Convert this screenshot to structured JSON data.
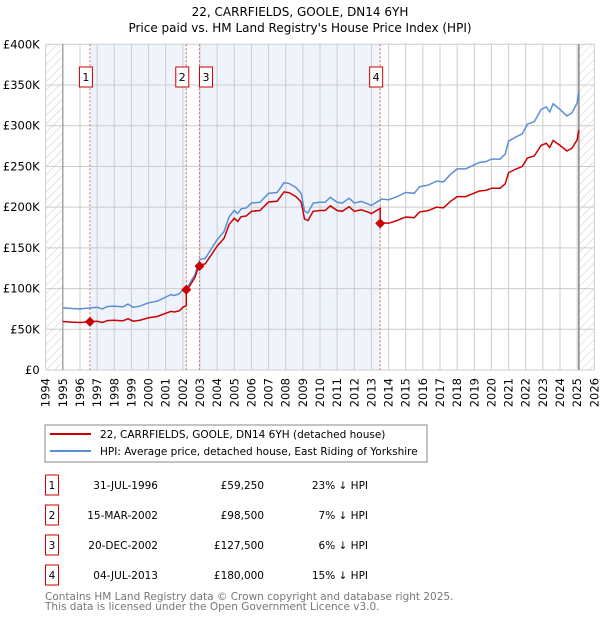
{
  "chart_data": {
    "type": "line",
    "title": "22, CARRFIELDS, GOOLE, DN14 6YH",
    "subtitle": "Price paid vs. HM Land Registry's House Price Index (HPI)",
    "xlim": [
      1994,
      2026
    ],
    "ylim": [
      0,
      400000
    ],
    "x_ticks": [
      "1994",
      "1995",
      "1996",
      "1997",
      "1998",
      "1999",
      "2000",
      "2001",
      "2002",
      "2003",
      "2004",
      "2005",
      "2006",
      "2007",
      "2008",
      "2009",
      "2010",
      "2011",
      "2012",
      "2013",
      "2014",
      "2015",
      "2016",
      "2017",
      "2018",
      "2019",
      "2020",
      "2021",
      "2022",
      "2023",
      "2024",
      "2025",
      "2026"
    ],
    "y_ticks": [
      {
        "value": 0,
        "label": "£0"
      },
      {
        "value": 50000,
        "label": "£50K"
      },
      {
        "value": 100000,
        "label": "£100K"
      },
      {
        "value": 150000,
        "label": "£150K"
      },
      {
        "value": 200000,
        "label": "£200K"
      },
      {
        "value": 250000,
        "label": "£250K"
      },
      {
        "value": 300000,
        "label": "£300K"
      },
      {
        "value": 350000,
        "label": "£350K"
      },
      {
        "value": 400000,
        "label": "£400K"
      }
    ],
    "grid": true,
    "data_start": 1995.0,
    "data_end": 2025.1,
    "colors": {
      "property": "#cc0000",
      "hpi": "#5b8fd4",
      "shade": "#eef3fc",
      "marker_line": "#e06666"
    },
    "hpi_series": {
      "name": "HPI: Average price, detached house, East Riding of Yorkshire",
      "points": [
        [
          1995.0,
          76500
        ],
        [
          1995.5,
          75500
        ],
        [
          1996.0,
          75000
        ],
        [
          1996.5,
          76000
        ],
        [
          1997.0,
          77000
        ],
        [
          1997.3,
          75000
        ],
        [
          1997.6,
          78000
        ],
        [
          1998.0,
          78500
        ],
        [
          1998.5,
          77500
        ],
        [
          1998.8,
          81000
        ],
        [
          1999.1,
          77000
        ],
        [
          1999.5,
          78500
        ],
        [
          2000.0,
          82500
        ],
        [
          2000.5,
          84500
        ],
        [
          2001.0,
          89500
        ],
        [
          2001.3,
          92500
        ],
        [
          2001.5,
          91500
        ],
        [
          2001.8,
          93500
        ],
        [
          2002.0,
          99000
        ],
        [
          2002.3,
          103000
        ],
        [
          2002.7,
          117000
        ],
        [
          2003.0,
          136000
        ],
        [
          2003.3,
          137000
        ],
        [
          2003.7,
          150000
        ],
        [
          2004.0,
          160000
        ],
        [
          2004.4,
          170000
        ],
        [
          2004.7,
          188000
        ],
        [
          2005.0,
          196000
        ],
        [
          2005.2,
          192000
        ],
        [
          2005.4,
          198000
        ],
        [
          2005.7,
          199000
        ],
        [
          2006.0,
          205000
        ],
        [
          2006.5,
          206000
        ],
        [
          2007.0,
          217000
        ],
        [
          2007.5,
          218000
        ],
        [
          2007.9,
          230000
        ],
        [
          2008.2,
          229000
        ],
        [
          2008.6,
          224000
        ],
        [
          2008.9,
          217000
        ],
        [
          2009.1,
          195000
        ],
        [
          2009.3,
          193000
        ],
        [
          2009.6,
          205000
        ],
        [
          2010.0,
          206000
        ],
        [
          2010.3,
          206000
        ],
        [
          2010.6,
          212000
        ],
        [
          2011.0,
          206000
        ],
        [
          2011.3,
          205000
        ],
        [
          2011.7,
          211000
        ],
        [
          2012.0,
          205000
        ],
        [
          2012.4,
          207000
        ],
        [
          2012.8,
          204000
        ],
        [
          2013.0,
          202000
        ],
        [
          2013.3,
          206000
        ],
        [
          2013.6,
          210000
        ],
        [
          2014.0,
          209000
        ],
        [
          2014.5,
          213000
        ],
        [
          2015.0,
          218000
        ],
        [
          2015.5,
          217000
        ],
        [
          2015.8,
          225000
        ],
        [
          2016.3,
          227000
        ],
        [
          2016.8,
          232000
        ],
        [
          2017.2,
          231000
        ],
        [
          2017.6,
          240000
        ],
        [
          2018.0,
          247000
        ],
        [
          2018.5,
          247000
        ],
        [
          2019.0,
          252000
        ],
        [
          2019.3,
          255000
        ],
        [
          2019.7,
          256000
        ],
        [
          2020.0,
          259000
        ],
        [
          2020.5,
          259000
        ],
        [
          2020.8,
          265000
        ],
        [
          2021.0,
          281000
        ],
        [
          2021.4,
          286000
        ],
        [
          2021.8,
          290000
        ],
        [
          2022.1,
          302000
        ],
        [
          2022.5,
          305000
        ],
        [
          2022.9,
          320000
        ],
        [
          2023.2,
          323000
        ],
        [
          2023.4,
          317000
        ],
        [
          2023.6,
          327000
        ],
        [
          2024.0,
          320000
        ],
        [
          2024.4,
          312000
        ],
        [
          2024.7,
          316000
        ],
        [
          2025.0,
          328000
        ],
        [
          2025.1,
          342000
        ]
      ]
    },
    "property_series": {
      "name": "22, CARRFIELDS, GOOLE, DN14 6YH (detached house)"
    },
    "sales": [
      {
        "n": "1",
        "date": "31-JUL-1996",
        "year": 1996.58,
        "price": 59250,
        "price_label": "£59,250",
        "hpi_diff": "23% ↓ HPI"
      },
      {
        "n": "2",
        "date": "15-MAR-2002",
        "year": 2002.2,
        "price": 98500,
        "price_label": "£98,500",
        "hpi_diff": "7% ↓ HPI"
      },
      {
        "n": "3",
        "date": "20-DEC-2002",
        "year": 2002.97,
        "price": 127500,
        "price_label": "£127,500",
        "hpi_diff": "6% ↓ HPI"
      },
      {
        "n": "4",
        "date": "04-JUL-2013",
        "year": 2013.51,
        "price": 180000,
        "price_label": "£180,000",
        "hpi_diff": "15% ↓ HPI"
      }
    ]
  },
  "footer": {
    "line1": "Contains HM Land Registry data © Crown copyright and database right 2025.",
    "line2": "This data is licensed under the Open Government Licence v3.0."
  }
}
